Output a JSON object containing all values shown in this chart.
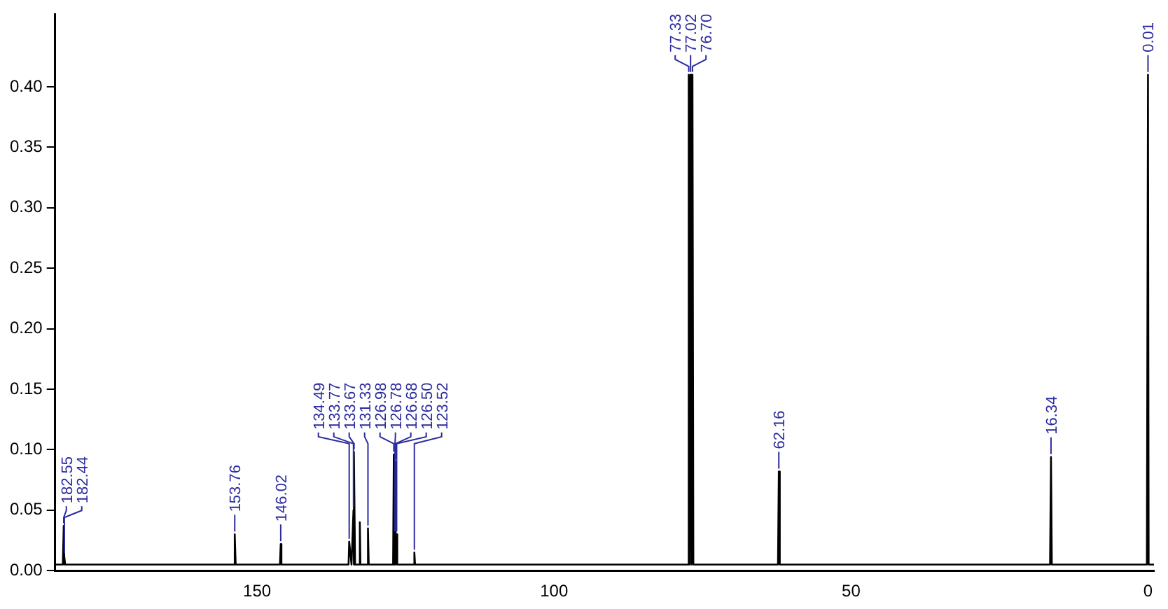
{
  "chart_data": {
    "type": "line",
    "marker": "none",
    "x": [
      184,
      182.7,
      182.55,
      182.5,
      182.44,
      182.3,
      170,
      153.9,
      153.76,
      153.6,
      146.15,
      146.02,
      145.9,
      134.6,
      134.49,
      134.1,
      133.77,
      133.72,
      133.67,
      133.5,
      132.8,
      132.7,
      132.6,
      131.45,
      131.33,
      131.2,
      127.1,
      126.98,
      126.88,
      126.78,
      126.73,
      126.68,
      126.6,
      126.5,
      126.4,
      123.65,
      123.52,
      123.4,
      100,
      77.5,
      77.33,
      77.18,
      77.02,
      76.86,
      76.7,
      76.55,
      62.3,
      62.16,
      62,
      16.5,
      16.34,
      16.2,
      0.2,
      0.01,
      -0.1,
      -1
    ],
    "series": [
      {
        "color": "#000000",
        "values": [
          0.005,
          0.005,
          0.037,
          0.005,
          0.012,
          0.005,
          0.005,
          0.005,
          0.03,
          0.005,
          0.005,
          0.022,
          0.005,
          0.005,
          0.024,
          0.005,
          0.05,
          0.005,
          0.098,
          0.005,
          0.005,
          0.04,
          0.005,
          0.005,
          0.035,
          0.005,
          0.005,
          0.096,
          0.005,
          0.03,
          0.005,
          0.09,
          0.005,
          0.03,
          0.005,
          0.005,
          0.015,
          0.005,
          0.005,
          0.005,
          0.41,
          0.005,
          0.41,
          0.005,
          0.41,
          0.005,
          0.005,
          0.082,
          0.005,
          0.005,
          0.094,
          0.005,
          0.005,
          0.41,
          0.005,
          0.005
        ]
      }
    ],
    "xlim": [
      184,
      -1
    ],
    "xticks": [
      150,
      100,
      50,
      0
    ],
    "ylim": [
      0,
      0.46
    ],
    "yticks": [
      {
        "value": 0,
        "label": "0.00"
      },
      {
        "value": 0.05,
        "label": "0.05"
      },
      {
        "value": 0.1,
        "label": "0.10"
      },
      {
        "value": 0.15,
        "label": "0.15"
      },
      {
        "value": 0.2,
        "label": "0.20"
      },
      {
        "value": 0.25,
        "label": "0.25"
      },
      {
        "value": 0.3,
        "label": "0.30"
      },
      {
        "value": 0.35,
        "label": "0.35"
      },
      {
        "value": 0.4,
        "label": "0.40"
      }
    ],
    "annotations": [
      {
        "text": "182.55",
        "x": 182.55,
        "y": 0.037
      },
      {
        "text": "182.44",
        "x": 182.44,
        "y": 0.012
      },
      {
        "text": "153.76",
        "x": 153.76,
        "y": 0.03
      },
      {
        "text": "146.02",
        "x": 146.02,
        "y": 0.022
      },
      {
        "text": "134.49",
        "x": 134.49,
        "y": 0.024
      },
      {
        "text": "133.77",
        "x": 133.77,
        "y": 0.05
      },
      {
        "text": "133.67",
        "x": 133.67,
        "y": 0.098
      },
      {
        "text": "131.33",
        "x": 131.33,
        "y": 0.035
      },
      {
        "text": "126.98",
        "x": 126.98,
        "y": 0.096
      },
      {
        "text": "126.78",
        "x": 126.78,
        "y": 0.03
      },
      {
        "text": "126.68",
        "x": 126.68,
        "y": 0.09
      },
      {
        "text": "126.50",
        "x": 126.5,
        "y": 0.03
      },
      {
        "text": "123.52",
        "x": 123.52,
        "y": 0.015
      },
      {
        "text": "77.33",
        "x": 77.33,
        "y": 0.41
      },
      {
        "text": "77.02",
        "x": 77.02,
        "y": 0.41
      },
      {
        "text": "76.70",
        "x": 76.7,
        "y": 0.41
      },
      {
        "text": "62.16",
        "x": 62.16,
        "y": 0.082
      },
      {
        "text": "16.34",
        "x": 16.34,
        "y": 0.094
      },
      {
        "text": "0.01",
        "x": 0.01,
        "y": 0.41
      }
    ]
  }
}
